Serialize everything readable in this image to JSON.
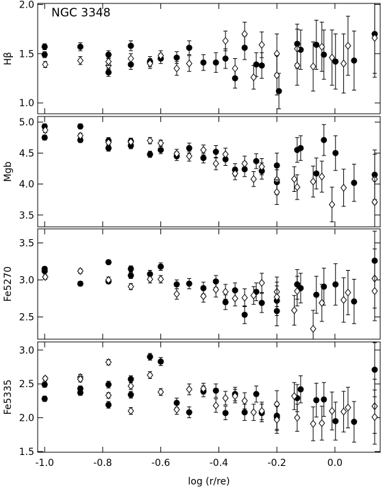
{
  "chart_data": [
    {
      "type": "scatter",
      "title": "NGC 3348",
      "ylabel": "Hβ",
      "xlim": [
        -1.024,
        0.156
      ],
      "ylim": [
        0.89,
        2.01
      ],
      "yticks": [
        {
          "value": 1.0,
          "label": "1.0"
        },
        {
          "value": 1.5,
          "label": "1.5"
        },
        {
          "value": 2.0,
          "label": "2.0"
        }
      ],
      "series": [
        {
          "color": "#000000",
          "marker": "circle-filled",
          "x": [
            -1.0,
            -1.0,
            -0.877,
            -0.78,
            -0.78,
            -0.703,
            -0.703,
            -0.637,
            -0.6,
            -0.545,
            -0.502,
            -0.453,
            -0.41,
            -0.377,
            -0.344,
            -0.311,
            -0.271,
            -0.252,
            -0.193,
            -0.13,
            -0.118,
            -0.064,
            -0.038,
            0.002,
            0.066,
            0.137
          ],
          "values": [
            1.57,
            1.49,
            1.57,
            1.49,
            1.31,
            1.58,
            1.39,
            1.42,
            1.45,
            1.46,
            1.56,
            1.41,
            1.41,
            1.45,
            1.25,
            1.56,
            1.39,
            1.38,
            1.12,
            1.6,
            1.54,
            1.59,
            1.49,
            1.42,
            1.43,
            1.7
          ],
          "errors": [
            0.03,
            0.03,
            0.04,
            0.04,
            0.04,
            0.05,
            0.05,
            0.05,
            0.05,
            0.06,
            0.07,
            0.08,
            0.1,
            0.1,
            0.1,
            0.12,
            0.12,
            0.13,
            0.18,
            0.2,
            0.2,
            0.25,
            0.25,
            0.28,
            0.3,
            0.4
          ]
        },
        {
          "color": "#000000",
          "marker": "diamond-open",
          "x": [
            -0.998,
            -0.877,
            -0.78,
            -0.78,
            -0.703,
            -0.637,
            -0.6,
            -0.545,
            -0.502,
            -0.377,
            -0.344,
            -0.311,
            -0.28,
            -0.252,
            -0.2,
            -0.2,
            -0.13,
            -0.13,
            -0.075,
            -0.045,
            -0.01,
            0.03,
            0.045,
            0.137
          ],
          "values": [
            1.39,
            1.43,
            1.38,
            1.42,
            1.45,
            1.4,
            1.48,
            1.35,
            1.4,
            1.63,
            1.35,
            1.7,
            1.26,
            1.59,
            1.5,
            1.28,
            1.55,
            1.38,
            1.37,
            1.57,
            1.46,
            1.4,
            1.58,
            1.66
          ],
          "errors": [
            0.03,
            0.04,
            0.04,
            0.04,
            0.05,
            0.05,
            0.05,
            0.07,
            0.08,
            0.1,
            0.1,
            0.12,
            0.12,
            0.13,
            0.2,
            0.2,
            0.2,
            0.2,
            0.25,
            0.25,
            0.28,
            0.3,
            0.3,
            0.4
          ]
        }
      ]
    },
    {
      "type": "scatter",
      "ylabel": "Mgb",
      "xlim": [
        -1.024,
        0.156
      ],
      "ylim": [
        3.31,
        5.09
      ],
      "yticks": [
        {
          "value": 3.5,
          "label": "3.5"
        },
        {
          "value": 4.0,
          "label": "4.0"
        },
        {
          "value": 4.5,
          "label": "4.5"
        },
        {
          "value": 5.0,
          "label": "5.0"
        }
      ],
      "series": [
        {
          "color": "#000000",
          "marker": "circle-filled",
          "x": [
            -1.0,
            -1.0,
            -0.877,
            -0.877,
            -0.78,
            -0.78,
            -0.703,
            -0.703,
            -0.637,
            -0.6,
            -0.545,
            -0.502,
            -0.453,
            -0.41,
            -0.377,
            -0.344,
            -0.311,
            -0.271,
            -0.252,
            -0.2,
            -0.2,
            -0.13,
            -0.118,
            -0.064,
            -0.038,
            0.002,
            0.066,
            0.137
          ],
          "values": [
            4.93,
            4.75,
            4.93,
            4.71,
            4.7,
            4.58,
            4.69,
            4.62,
            4.48,
            4.55,
            4.45,
            4.58,
            4.42,
            4.52,
            4.4,
            4.23,
            4.24,
            4.37,
            4.21,
            4.3,
            4.03,
            4.55,
            4.58,
            4.17,
            4.71,
            4.5,
            4.02,
            4.15
          ],
          "errors": [
            0.04,
            0.04,
            0.04,
            0.04,
            0.05,
            0.05,
            0.05,
            0.05,
            0.05,
            0.06,
            0.07,
            0.08,
            0.08,
            0.1,
            0.1,
            0.1,
            0.12,
            0.12,
            0.13,
            0.2,
            0.2,
            0.2,
            0.2,
            0.25,
            0.25,
            0.28,
            0.3,
            0.4
          ]
        },
        {
          "color": "#000000",
          "marker": "diamond-open",
          "x": [
            -0.998,
            -0.877,
            -0.78,
            -0.703,
            -0.637,
            -0.6,
            -0.545,
            -0.502,
            -0.453,
            -0.41,
            -0.377,
            -0.344,
            -0.311,
            -0.28,
            -0.252,
            -0.2,
            -0.2,
            -0.14,
            -0.13,
            -0.075,
            -0.045,
            -0.01,
            0.03,
            0.137,
            0.137
          ],
          "values": [
            4.87,
            4.78,
            4.67,
            4.68,
            4.7,
            4.66,
            4.49,
            4.45,
            4.55,
            4.33,
            4.48,
            4.17,
            4.33,
            4.08,
            4.28,
            4.07,
            3.87,
            4.08,
            3.95,
            4.04,
            4.12,
            3.67,
            3.94,
            4.08,
            3.71
          ],
          "errors": [
            0.04,
            0.04,
            0.05,
            0.05,
            0.05,
            0.05,
            0.07,
            0.08,
            0.08,
            0.1,
            0.1,
            0.1,
            0.12,
            0.12,
            0.13,
            0.2,
            0.2,
            0.2,
            0.2,
            0.25,
            0.25,
            0.28,
            0.3,
            0.4,
            0.4
          ]
        }
      ]
    },
    {
      "type": "scatter",
      "ylabel": "Fe5270",
      "xlim": [
        -1.024,
        0.156
      ],
      "ylim": [
        2.2,
        3.69
      ],
      "yticks": [
        {
          "value": 2.5,
          "label": "2.5"
        },
        {
          "value": 3.0,
          "label": "3.0"
        },
        {
          "value": 3.5,
          "label": "3.5"
        }
      ],
      "series": [
        {
          "color": "#000000",
          "marker": "circle-filled",
          "x": [
            -1.0,
            -1.0,
            -0.877,
            -0.78,
            -0.78,
            -0.703,
            -0.703,
            -0.637,
            -0.6,
            -0.545,
            -0.502,
            -0.453,
            -0.41,
            -0.377,
            -0.344,
            -0.311,
            -0.271,
            -0.252,
            -0.2,
            -0.2,
            -0.13,
            -0.118,
            -0.064,
            -0.038,
            0.002,
            0.066,
            0.137
          ],
          "values": [
            3.15,
            3.12,
            2.95,
            3.24,
            2.98,
            3.15,
            3.06,
            3.08,
            3.18,
            2.94,
            2.95,
            2.89,
            2.98,
            2.7,
            2.86,
            2.53,
            2.84,
            2.69,
            2.72,
            2.58,
            2.94,
            2.89,
            2.8,
            2.91,
            2.94,
            2.71,
            3.26
          ],
          "errors": [
            0.03,
            0.03,
            0.03,
            0.03,
            0.03,
            0.04,
            0.04,
            0.05,
            0.05,
            0.06,
            0.07,
            0.08,
            0.08,
            0.1,
            0.1,
            0.12,
            0.12,
            0.13,
            0.2,
            0.2,
            0.2,
            0.2,
            0.25,
            0.25,
            0.28,
            0.3,
            0.4
          ]
        },
        {
          "color": "#000000",
          "marker": "diamond-open",
          "x": [
            -0.998,
            -0.877,
            -0.78,
            -0.703,
            -0.637,
            -0.6,
            -0.545,
            -0.453,
            -0.41,
            -0.377,
            -0.344,
            -0.311,
            -0.28,
            -0.252,
            -0.2,
            -0.2,
            -0.14,
            -0.13,
            -0.075,
            -0.045,
            0.03,
            0.045,
            0.137,
            0.137
          ],
          "values": [
            3.04,
            3.12,
            3.0,
            2.91,
            3.01,
            3.01,
            2.81,
            2.78,
            2.87,
            2.84,
            2.75,
            2.76,
            2.79,
            2.96,
            2.84,
            2.77,
            2.59,
            2.85,
            2.34,
            2.69,
            2.73,
            2.83,
            3.02,
            2.85
          ],
          "errors": [
            0.03,
            0.03,
            0.04,
            0.04,
            0.05,
            0.05,
            0.07,
            0.08,
            0.1,
            0.1,
            0.1,
            0.12,
            0.12,
            0.13,
            0.2,
            0.2,
            0.2,
            0.2,
            0.25,
            0.25,
            0.3,
            0.3,
            0.4,
            0.4
          ]
        }
      ]
    },
    {
      "type": "scatter",
      "ylabel": "Fe5335",
      "xlabel": "log (r/re)",
      "xlim": [
        -1.024,
        0.156
      ],
      "ylim": [
        1.49,
        3.12
      ],
      "xticks": [
        {
          "value": -1.0,
          "label": "-1.0"
        },
        {
          "value": -0.8,
          "label": "-0.8"
        },
        {
          "value": -0.6,
          "label": "-0.6"
        },
        {
          "value": -0.4,
          "label": "-0.4"
        },
        {
          "value": -0.2,
          "label": "-0.2"
        },
        {
          "value": 0.0,
          "label": "0.0"
        }
      ],
      "yticks": [
        {
          "value": 1.5,
          "label": "1.5"
        },
        {
          "value": 2.0,
          "label": "2.0"
        },
        {
          "value": 2.5,
          "label": "2.5"
        },
        {
          "value": 3.0,
          "label": "3.0"
        }
      ],
      "series": [
        {
          "color": "#000000",
          "marker": "circle-filled",
          "x": [
            -1.0,
            -1.0,
            -0.877,
            -0.877,
            -0.78,
            -0.78,
            -0.703,
            -0.703,
            -0.637,
            -0.6,
            -0.545,
            -0.502,
            -0.453,
            -0.41,
            -0.377,
            -0.344,
            -0.311,
            -0.271,
            -0.252,
            -0.2,
            -0.2,
            -0.13,
            -0.118,
            -0.064,
            -0.038,
            0.002,
            0.066,
            0.137
          ],
          "values": [
            2.49,
            2.28,
            2.43,
            2.37,
            2.49,
            2.19,
            2.57,
            2.34,
            2.9,
            2.83,
            2.22,
            2.08,
            2.39,
            2.4,
            2.07,
            2.35,
            2.08,
            2.35,
            2.07,
            2.03,
            2.01,
            2.29,
            2.42,
            2.26,
            2.27,
            1.95,
            1.94,
            2.71
          ],
          "errors": [
            0.04,
            0.04,
            0.04,
            0.04,
            0.05,
            0.05,
            0.05,
            0.05,
            0.05,
            0.06,
            0.07,
            0.08,
            0.08,
            0.1,
            0.1,
            0.1,
            0.12,
            0.12,
            0.13,
            0.2,
            0.2,
            0.2,
            0.2,
            0.25,
            0.25,
            0.28,
            0.3,
            0.4
          ]
        },
        {
          "color": "#000000",
          "marker": "diamond-open",
          "x": [
            -0.998,
            -0.877,
            -0.877,
            -0.78,
            -0.78,
            -0.703,
            -0.703,
            -0.637,
            -0.6,
            -0.545,
            -0.502,
            -0.453,
            -0.41,
            -0.377,
            -0.344,
            -0.311,
            -0.28,
            -0.252,
            -0.2,
            -0.2,
            -0.14,
            -0.13,
            -0.075,
            -0.045,
            -0.01,
            0.03,
            0.045,
            0.137,
            0.137
          ],
          "values": [
            2.58,
            2.6,
            2.57,
            2.82,
            2.33,
            2.47,
            2.1,
            2.63,
            2.38,
            2.12,
            2.42,
            2.43,
            2.18,
            2.29,
            2.32,
            2.25,
            2.08,
            2.1,
            2.2,
            1.97,
            2.32,
            2.0,
            1.91,
            1.92,
            2.1,
            2.09,
            2.15,
            2.17,
            2.01
          ],
          "errors": [
            0.03,
            0.04,
            0.04,
            0.04,
            0.04,
            0.05,
            0.05,
            0.05,
            0.05,
            0.07,
            0.08,
            0.08,
            0.1,
            0.1,
            0.1,
            0.12,
            0.12,
            0.13,
            0.2,
            0.2,
            0.2,
            0.2,
            0.25,
            0.25,
            0.28,
            0.3,
            0.3,
            0.4,
            0.4
          ]
        }
      ]
    }
  ]
}
